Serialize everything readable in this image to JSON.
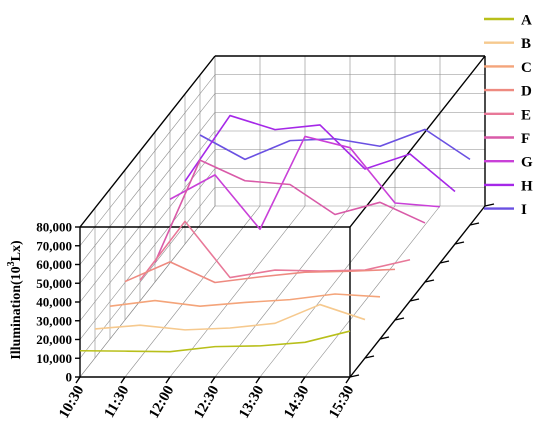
{
  "chart_data": {
    "type": "line",
    "subtype": "3d-waterfall",
    "ylabel_main": "Illumination(10",
    "ylabel_sup": "3",
    "ylabel_tail": "Lx)",
    "x": [
      "10:30",
      "11:30",
      "12:00",
      "12:30",
      "13:30",
      "14:30",
      "15:30"
    ],
    "ylim": [
      0,
      80000
    ],
    "y_ticks": [
      "0",
      "10,000",
      "20,000",
      "30,000",
      "40,000",
      "50,000",
      "60,000",
      "70,000",
      "80,000"
    ],
    "grid": true,
    "legend_position": "right",
    "series": [
      {
        "name": "A",
        "color": "#b8bf1a",
        "values": [
          14000,
          13800,
          13500,
          16200,
          16600,
          18500,
          24500
        ]
      },
      {
        "name": "B",
        "color": "#f6c98e",
        "values": [
          15500,
          17500,
          15000,
          16000,
          18500,
          28500,
          20500
        ]
      },
      {
        "name": "C",
        "color": "#f4a47a",
        "values": [
          17500,
          20500,
          17500,
          19500,
          21000,
          24000,
          22500
        ]
      },
      {
        "name": "D",
        "color": "#ee8a80",
        "values": [
          20500,
          31000,
          20000,
          23000,
          25500,
          26000,
          27000
        ]
      },
      {
        "name": "E",
        "color": "#e87898",
        "values": [
          11000,
          42500,
          12500,
          16500,
          16000,
          16500,
          22000
        ]
      },
      {
        "name": "F",
        "color": "#d95aa8",
        "values": [
          10500,
          65000,
          54000,
          52000,
          36000,
          42500,
          31500
        ]
      },
      {
        "name": "G",
        "color": "#c940d8",
        "values": [
          34000,
          47000,
          18000,
          67500,
          61500,
          32000,
          30000
        ]
      },
      {
        "name": "H",
        "color": "#a528e8",
        "values": [
          33500,
          68500,
          61000,
          63500,
          40000,
          48000,
          28000
        ]
      },
      {
        "name": "I",
        "color": "#6a50e2",
        "values": [
          48000,
          35000,
          45000,
          46000,
          42000,
          51000,
          35000
        ]
      }
    ]
  }
}
